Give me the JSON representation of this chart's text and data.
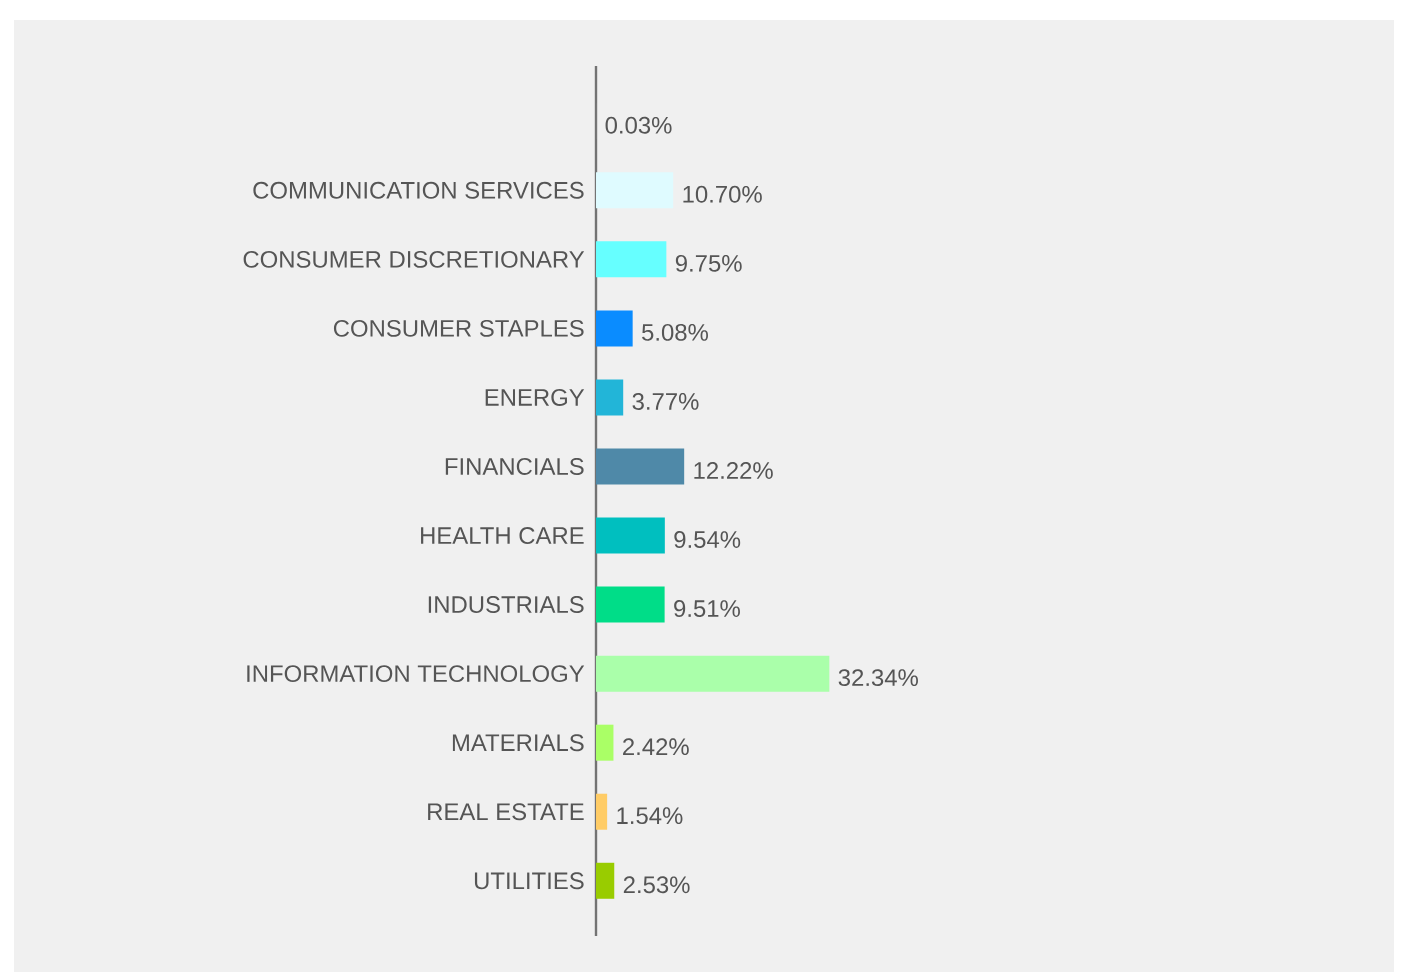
{
  "chart_data": {
    "type": "bar",
    "orientation": "horizontal",
    "categories": [
      null,
      "COMMUNICATION SERVICES",
      "CONSUMER DISCRETIONARY",
      "CONSUMER STAPLES",
      "ENERGY",
      "FINANCIALS",
      "HEALTH CARE",
      "INDUSTRIALS",
      "INFORMATION TECHNOLOGY",
      "MATERIALS",
      "REAL ESTATE",
      "UTILITIES"
    ],
    "values": [
      0.03,
      10.7,
      9.75,
      5.08,
      3.77,
      12.22,
      9.54,
      9.51,
      32.34,
      2.42,
      1.54,
      2.53
    ],
    "value_labels": [
      "0.03%",
      "10.70%",
      "9.75%",
      "5.08%",
      "3.77%",
      "12.22%",
      "9.54%",
      "9.51%",
      "32.34%",
      "2.42%",
      "1.54%",
      "2.53%"
    ],
    "colors": [
      "#888888",
      "#dffbff",
      "#66ffff",
      "#0a8cff",
      "#22b5d8",
      "#4f89a8",
      "#00bfbf",
      "#00dd88",
      "#aaffaa",
      "#aaff66",
      "#ffcc66",
      "#99cc00"
    ]
  }
}
